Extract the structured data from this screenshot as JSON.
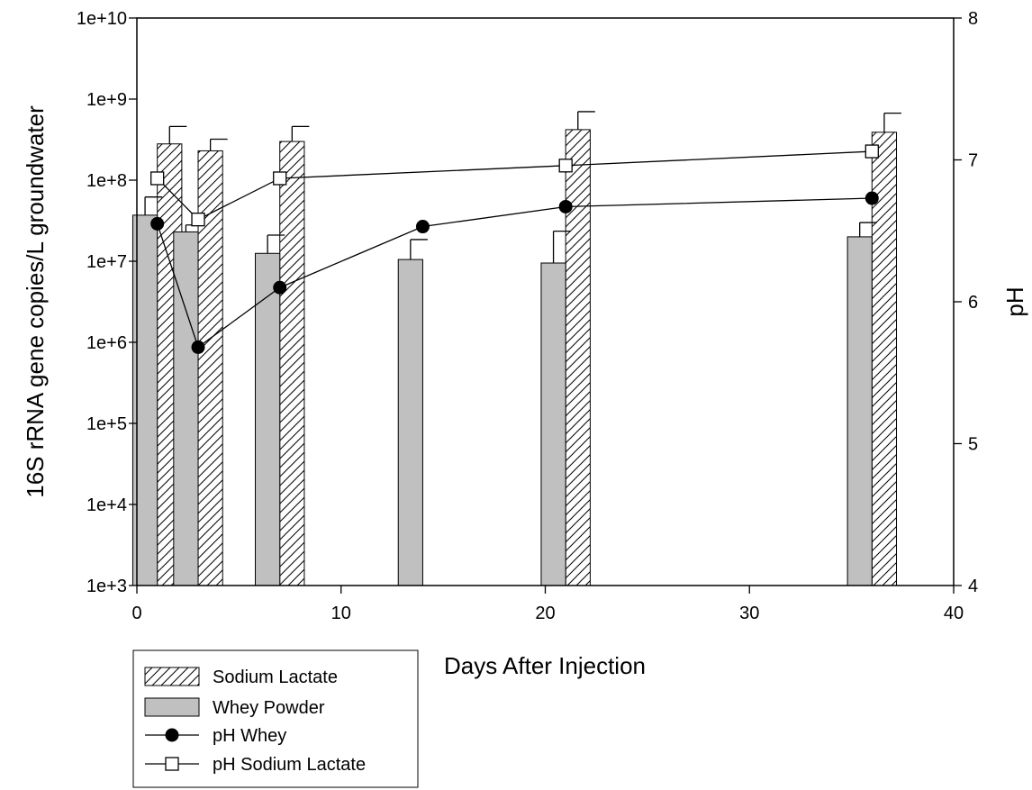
{
  "chart_data": {
    "type": "bar",
    "title": "",
    "xlabel": "Days After Injection",
    "ylabel": "16S rRNA gene copies/L groundwater",
    "y2label": "pH",
    "xlim": [
      0,
      40
    ],
    "ylim": [
      1000,
      10000000000
    ],
    "y_scale": "log",
    "y2lim": [
      4,
      8
    ],
    "x_ticks": [
      "0",
      "10",
      "20",
      "30",
      "40"
    ],
    "y_ticks": [
      "1e+3",
      "1e+4",
      "1e+5",
      "1e+6",
      "1e+7",
      "1e+8",
      "1e+9",
      "1e+10"
    ],
    "y2_ticks": [
      "4",
      "5",
      "6",
      "7",
      "8"
    ],
    "grid": false,
    "legend_position": "below-left",
    "bar_series": [
      {
        "name": "Sodium Lactate",
        "pattern": "diagonal-hatch",
        "color": "#ffffff",
        "x": [
          1,
          3,
          7,
          21,
          36
        ],
        "values": [
          280000000,
          230000000,
          300000000,
          420000000,
          390000000
        ],
        "errors": [
          460000000,
          320000000,
          460000000,
          700000000,
          670000000
        ]
      },
      {
        "name": "Whey Powder",
        "pattern": "solid",
        "color": "#c0c0c0",
        "x": [
          1,
          3,
          7,
          14,
          21,
          36
        ],
        "values": [
          37000000,
          23000000,
          12500000,
          10500000,
          9500000,
          20000000
        ],
        "errors": [
          62000000,
          28000000,
          21000000,
          18500000,
          23500000,
          30000000
        ]
      }
    ],
    "line_series": [
      {
        "name": "pH Whey",
        "marker": "filled-circle",
        "axis": "right",
        "x": [
          1,
          3,
          7,
          14,
          21,
          36
        ],
        "values": [
          6.55,
          5.68,
          6.1,
          6.53,
          6.67,
          6.73
        ]
      },
      {
        "name": "pH Sodium Lactate",
        "marker": "open-square",
        "axis": "right",
        "x": [
          1,
          3,
          7,
          21,
          36
        ],
        "values": [
          6.87,
          6.58,
          6.87,
          6.96,
          7.06
        ]
      }
    ]
  }
}
